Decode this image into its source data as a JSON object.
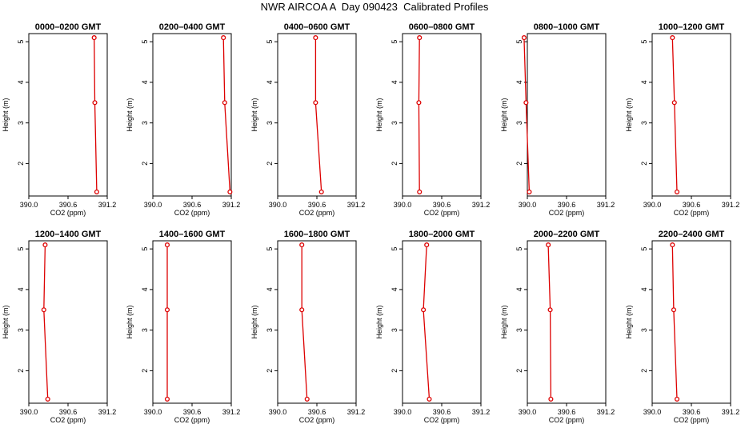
{
  "title": "NWR AIRCOA A  Day 090423  Calibrated Profiles",
  "colors": {
    "line": "#dd0000",
    "point": "#dd0000",
    "axis": "#000000",
    "background": "#ffffff"
  },
  "chart_data": [
    {
      "type": "line",
      "title": "0000–0200 GMT",
      "xlabel": "CO2 (ppm)",
      "ylabel": "Height (m)",
      "xlim": [
        390.0,
        391.2
      ],
      "ylim": [
        1.2,
        5.2
      ],
      "xticks": [
        "390.0",
        "390.6",
        "391.2"
      ],
      "yticks": [
        "2",
        "3",
        "4",
        "5"
      ],
      "series": [
        {
          "x": [
            391.0,
            391.01,
            391.04
          ],
          "y": [
            5.1,
            3.5,
            1.3
          ]
        }
      ]
    },
    {
      "type": "line",
      "title": "0200–0400 GMT",
      "xlabel": "CO2 (ppm)",
      "ylabel": "Height (m)",
      "xlim": [
        390.0,
        391.2
      ],
      "ylim": [
        1.2,
        5.2
      ],
      "xticks": [
        "390.0",
        "390.6",
        "391.2"
      ],
      "yticks": [
        "2",
        "3",
        "4",
        "5"
      ],
      "series": [
        {
          "x": [
            391.08,
            391.1,
            391.18
          ],
          "y": [
            5.1,
            3.5,
            1.3
          ]
        }
      ]
    },
    {
      "type": "line",
      "title": "0400–0600 GMT",
      "xlabel": "CO2 (ppm)",
      "ylabel": "Height (m)",
      "xlim": [
        390.0,
        391.2
      ],
      "ylim": [
        1.2,
        5.2
      ],
      "xticks": [
        "390.0",
        "390.6",
        "391.2"
      ],
      "yticks": [
        "2",
        "3",
        "4",
        "5"
      ],
      "series": [
        {
          "x": [
            390.58,
            390.58,
            390.67
          ],
          "y": [
            5.1,
            3.5,
            1.3
          ]
        }
      ]
    },
    {
      "type": "line",
      "title": "0600–0800 GMT",
      "xlabel": "CO2 (ppm)",
      "ylabel": "Height (m)",
      "xlim": [
        390.0,
        391.2
      ],
      "ylim": [
        1.2,
        5.2
      ],
      "xticks": [
        "390.0",
        "390.6",
        "391.2"
      ],
      "yticks": [
        "2",
        "3",
        "4",
        "5"
      ],
      "series": [
        {
          "x": [
            390.26,
            390.25,
            390.26
          ],
          "y": [
            5.1,
            3.5,
            1.3
          ]
        }
      ]
    },
    {
      "type": "line",
      "title": "0800–1000 GMT",
      "xlabel": "CO2 (ppm)",
      "ylabel": "Height (m)",
      "xlim": [
        390.0,
        391.2
      ],
      "ylim": [
        1.2,
        5.2
      ],
      "xticks": [
        "390.0",
        "390.6",
        "391.2"
      ],
      "yticks": [
        "2",
        "3",
        "4",
        "5"
      ],
      "series": [
        {
          "x": [
            389.95,
            389.98,
            390.03
          ],
          "y": [
            5.1,
            3.5,
            1.3
          ]
        }
      ]
    },
    {
      "type": "line",
      "title": "1000–1200 GMT",
      "xlabel": "CO2 (ppm)",
      "ylabel": "Height (m)",
      "xlim": [
        390.0,
        391.2
      ],
      "ylim": [
        1.2,
        5.2
      ],
      "xticks": [
        "390.0",
        "390.6",
        "391.2"
      ],
      "yticks": [
        "2",
        "3",
        "4",
        "5"
      ],
      "series": [
        {
          "x": [
            390.31,
            390.34,
            390.38
          ],
          "y": [
            5.1,
            3.5,
            1.3
          ]
        }
      ]
    },
    {
      "type": "line",
      "title": "1200–1400 GMT",
      "xlabel": "CO2 (ppm)",
      "ylabel": "Height (m)",
      "xlim": [
        390.0,
        391.2
      ],
      "ylim": [
        1.2,
        5.2
      ],
      "xticks": [
        "390.0",
        "390.6",
        "391.2"
      ],
      "yticks": [
        "2",
        "3",
        "4",
        "5"
      ],
      "series": [
        {
          "x": [
            390.25,
            390.23,
            390.29
          ],
          "y": [
            5.1,
            3.5,
            1.3
          ]
        }
      ]
    },
    {
      "type": "line",
      "title": "1400–1600 GMT",
      "xlabel": "CO2 (ppm)",
      "ylabel": "Height (m)",
      "xlim": [
        390.0,
        391.2
      ],
      "ylim": [
        1.2,
        5.2
      ],
      "xticks": [
        "390.0",
        "390.6",
        "391.2"
      ],
      "yticks": [
        "2",
        "3",
        "4",
        "5"
      ],
      "series": [
        {
          "x": [
            390.22,
            390.22,
            390.22
          ],
          "y": [
            5.1,
            3.5,
            1.3
          ]
        }
      ]
    },
    {
      "type": "line",
      "title": "1600–1800 GMT",
      "xlabel": "CO2 (ppm)",
      "ylabel": "Height (m)",
      "xlim": [
        390.0,
        391.2
      ],
      "ylim": [
        1.2,
        5.2
      ],
      "xticks": [
        "390.0",
        "390.6",
        "391.2"
      ],
      "yticks": [
        "2",
        "3",
        "4",
        "5"
      ],
      "series": [
        {
          "x": [
            390.37,
            390.37,
            390.45
          ],
          "y": [
            5.1,
            3.5,
            1.3
          ]
        }
      ]
    },
    {
      "type": "line",
      "title": "1800–2000 GMT",
      "xlabel": "CO2 (ppm)",
      "ylabel": "Height (m)",
      "xlim": [
        390.0,
        391.2
      ],
      "ylim": [
        1.2,
        5.2
      ],
      "xticks": [
        "390.0",
        "390.6",
        "391.2"
      ],
      "yticks": [
        "2",
        "3",
        "4",
        "5"
      ],
      "series": [
        {
          "x": [
            390.37,
            390.32,
            390.41
          ],
          "y": [
            5.1,
            3.5,
            1.3
          ]
        }
      ]
    },
    {
      "type": "line",
      "title": "2000–2200 GMT",
      "xlabel": "CO2 (ppm)",
      "ylabel": "Height (m)",
      "xlim": [
        390.0,
        391.2
      ],
      "ylim": [
        1.2,
        5.2
      ],
      "xticks": [
        "390.0",
        "390.6",
        "391.2"
      ],
      "yticks": [
        "2",
        "3",
        "4",
        "5"
      ],
      "series": [
        {
          "x": [
            390.32,
            390.35,
            390.36
          ],
          "y": [
            5.1,
            3.5,
            1.3
          ]
        }
      ]
    },
    {
      "type": "line",
      "title": "2200–2400 GMT",
      "xlabel": "CO2 (ppm)",
      "ylabel": "Height (m)",
      "xlim": [
        390.0,
        391.2
      ],
      "ylim": [
        1.2,
        5.2
      ],
      "xticks": [
        "390.0",
        "390.6",
        "391.2"
      ],
      "yticks": [
        "2",
        "3",
        "4",
        "5"
      ],
      "series": [
        {
          "x": [
            390.31,
            390.33,
            390.38
          ],
          "y": [
            5.1,
            3.5,
            1.3
          ]
        }
      ]
    }
  ]
}
